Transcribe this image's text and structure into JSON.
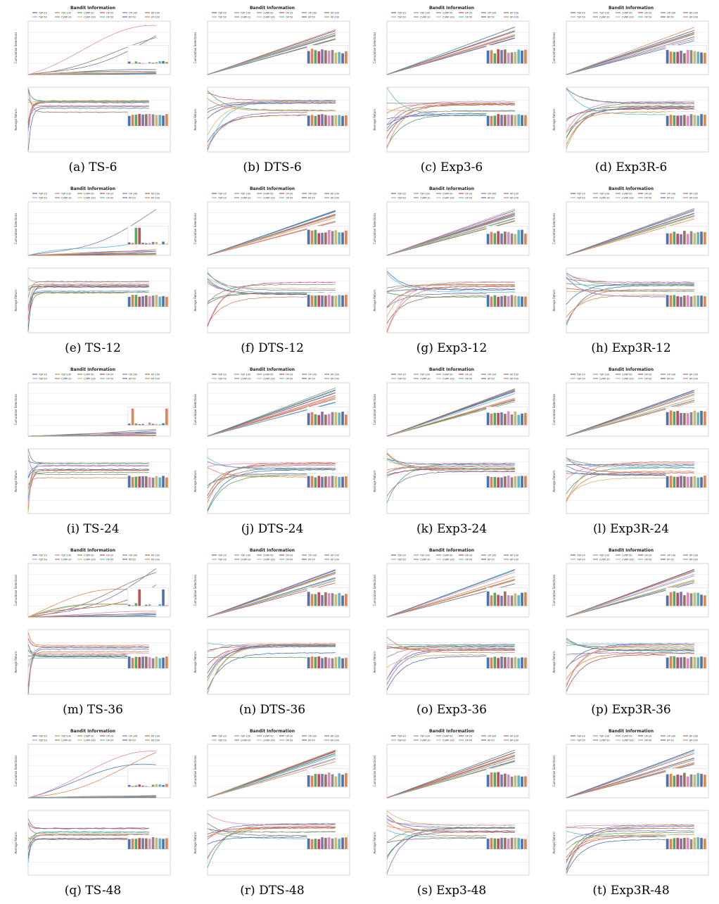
{
  "figure": {
    "panel_title": "Bandit Information",
    "upper_ylabel": "Cumulative Selections",
    "lower_ylabel": "Average Return",
    "legend": [
      "TSP-20",
      "TSP-100",
      "CVRP-50",
      "OP-20",
      "OP-100",
      "KP-100",
      "TSP-50",
      "CVRP-20",
      "CVRP-100",
      "OP-50",
      "KP-50",
      "KP-200"
    ],
    "bandits": [
      "TSP-20",
      "TSP-50",
      "TSP-100",
      "CVRP-20",
      "CVRP-50",
      "CVRP-100",
      "OP-20",
      "OP-50",
      "OP-100",
      "KP-50",
      "KP-100",
      "KP-200"
    ],
    "colors": [
      "#4c72b0",
      "#dd8452",
      "#55a868",
      "#c44e52",
      "#8172b3",
      "#937860",
      "#da8bc3",
      "#8c8c8c",
      "#ccb974",
      "#64b5cd",
      "#4c72b0",
      "#dd8452"
    ]
  },
  "panels": [
    {
      "caption": "(a)  TS-6",
      "kind": "ts",
      "seed": 1
    },
    {
      "caption": "(b)  DTS-6",
      "kind": "lin",
      "seed": 2
    },
    {
      "caption": "(c)  Exp3-6",
      "kind": "lin",
      "seed": 3
    },
    {
      "caption": "(d)  Exp3R-6",
      "kind": "lin",
      "seed": 4
    },
    {
      "caption": "(e)  TS-12",
      "kind": "ts",
      "seed": 5
    },
    {
      "caption": "(f)  DTS-12",
      "kind": "lin",
      "seed": 6
    },
    {
      "caption": "(g)  Exp3-12",
      "kind": "lin",
      "seed": 7
    },
    {
      "caption": "(h)  Exp3R-12",
      "kind": "lin",
      "seed": 8
    },
    {
      "caption": "(i)  TS-24",
      "kind": "ts",
      "seed": 9
    },
    {
      "caption": "(j)  DTS-24",
      "kind": "lin",
      "seed": 10
    },
    {
      "caption": "(k)  Exp3-24",
      "kind": "lin",
      "seed": 11
    },
    {
      "caption": "(l)  Exp3R-24",
      "kind": "lin",
      "seed": 12
    },
    {
      "caption": "(m)  TS-36",
      "kind": "ts",
      "seed": 13
    },
    {
      "caption": "(n)  DTS-36",
      "kind": "lin",
      "seed": 14
    },
    {
      "caption": "(o)  Exp3-36",
      "kind": "lin",
      "seed": 15
    },
    {
      "caption": "(p)  Exp3R-36",
      "kind": "lin",
      "seed": 16
    },
    {
      "caption": "(q)  TS-48",
      "kind": "ts",
      "seed": 17
    },
    {
      "caption": "(r)  DTS-48",
      "kind": "lin",
      "seed": 18
    },
    {
      "caption": "(s)  Exp3-48",
      "kind": "lin",
      "seed": 19
    },
    {
      "caption": "(t)  Exp3R-48",
      "kind": "lin",
      "seed": 20
    }
  ],
  "chart_data": {
    "type": "line",
    "series": [
      {
        "name": "TSP-20"
      },
      {
        "name": "TSP-100"
      },
      {
        "name": "CVRP-50"
      },
      {
        "name": "OP-20"
      },
      {
        "name": "OP-100"
      },
      {
        "name": "KP-100"
      },
      {
        "name": "TSP-50"
      },
      {
        "name": "CVRP-20"
      },
      {
        "name": "CVRP-100"
      },
      {
        "name": "OP-50"
      },
      {
        "name": "KP-50"
      },
      {
        "name": "KP-200"
      }
    ],
    "upper": {
      "ylabel": "Cumulative Selections"
    },
    "lower": {
      "ylabel": "Average Return"
    },
    "grid": true
  }
}
